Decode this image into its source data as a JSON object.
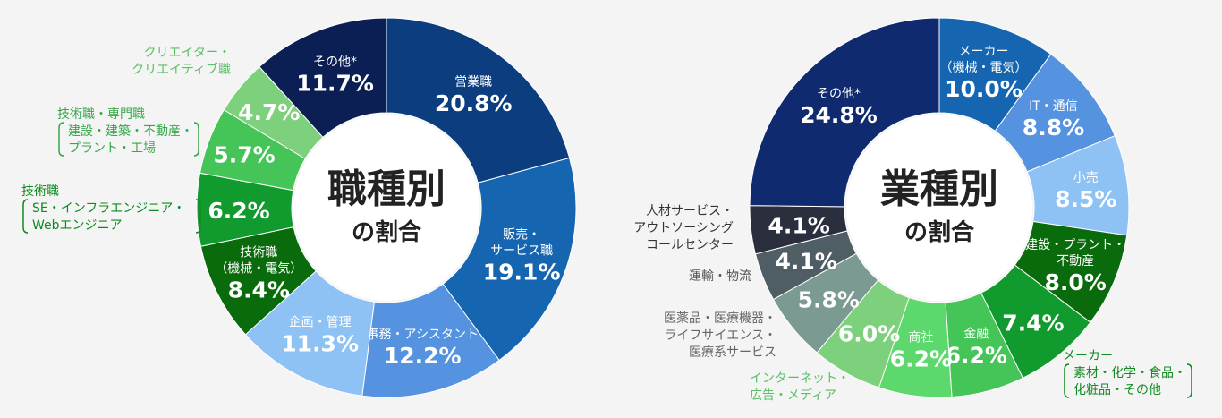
{
  "chart_data": [
    {
      "type": "pie",
      "title": "職種別",
      "subtitle": "の割合",
      "slices": [
        {
          "label": [
            "営業職"
          ],
          "value": 20.8,
          "value_label": "20.8%",
          "color": "#0c3d7e"
        },
        {
          "label": [
            "販売・",
            "サービス職"
          ],
          "value": 19.1,
          "value_label": "19.1%",
          "color": "#1565b0"
        },
        {
          "label": [
            "事務・アシスタント"
          ],
          "value": 12.2,
          "value_label": "12.2%",
          "color": "#5592df"
        },
        {
          "label": [
            "企画・管理"
          ],
          "value": 11.3,
          "value_label": "11.3%",
          "color": "#8fc2f4"
        },
        {
          "label": [
            "技術職",
            "（機械・電気）"
          ],
          "value": 8.4,
          "value_label": "8.4%",
          "color": "#0a6b0c"
        },
        {
          "label": [],
          "value": 6.2,
          "value_label": "6.2%",
          "color": "#119a2d",
          "callout": [
            "技術職",
            "SE・インフラエンジニア・",
            "Webエンジニア"
          ],
          "callout_color": "#128a22"
        },
        {
          "label": [],
          "value": 5.7,
          "value_label": "5.7%",
          "color": "#45c458",
          "callout": [
            "技術職・専門職",
            "建設・建築・不動産・",
            "プラント・工場"
          ],
          "callout_color": "#36a84a"
        },
        {
          "label": [],
          "value": 4.7,
          "value_label": "4.7%",
          "color": "#7dd07c",
          "callout": [
            "クリエイター・",
            "クリエイティブ職"
          ],
          "callout_color": "#5bbf66"
        },
        {
          "label": [
            "その他*"
          ],
          "value": 11.7,
          "value_label": "11.7%",
          "color": "#0b1f55"
        }
      ]
    },
    {
      "type": "pie",
      "title": "業種別",
      "subtitle": "の割合",
      "slices": [
        {
          "label": [
            "メーカー",
            "（機械・電気）"
          ],
          "value": 10.0,
          "value_label": "10.0%",
          "color": "#1565b0"
        },
        {
          "label": [
            "IT・通信"
          ],
          "value": 8.8,
          "value_label": "8.8%",
          "color": "#5592df"
        },
        {
          "label": [
            "小売"
          ],
          "value": 8.5,
          "value_label": "8.5%",
          "color": "#8fc2f4"
        },
        {
          "label": [
            "建設・プラント・",
            "不動産"
          ],
          "value": 8.0,
          "value_label": "8.0%",
          "color": "#0a6b0c"
        },
        {
          "label": [],
          "value": 7.4,
          "value_label": "7.4%",
          "color": "#119a2d",
          "callout": [
            "メーカー",
            "素材・化学・食品・",
            "化粧品・その他"
          ],
          "callout_color": "#128a22"
        },
        {
          "label": [
            "金融"
          ],
          "value": 6.2,
          "value_label": "6.2%",
          "color": "#45c458"
        },
        {
          "label": [
            "商社"
          ],
          "value": 6.2,
          "value_label": "6.2%",
          "color": "#5cd86c"
        },
        {
          "label": [],
          "value": 6.0,
          "value_label": "6.0%",
          "color": "#7dd07c",
          "callout": [
            "インターネット・",
            "広告・メディア"
          ],
          "callout_color": "#5bbf66"
        },
        {
          "label": [],
          "value": 5.8,
          "value_label": "5.8%",
          "color": "#7b9a91",
          "callout": [
            "医薬品・医療機器・",
            "ライフサイエンス・",
            "医療系サービス"
          ],
          "callout_color": "#666666"
        },
        {
          "label": [],
          "value": 4.1,
          "value_label": "4.1%",
          "color": "#4e5e64",
          "callout": [
            "運輸・物流"
          ],
          "callout_color": "#555555"
        },
        {
          "label": [],
          "value": 4.1,
          "value_label": "4.1%",
          "color": "#2b2e3c",
          "callout": [
            "人材サービス・",
            "アウトソーシング",
            "コールセンター"
          ],
          "callout_color": "#333333"
        },
        {
          "label": [
            "その他*"
          ],
          "value": 24.8,
          "value_label": "24.8%",
          "color": "#0f2a6e"
        }
      ]
    }
  ]
}
